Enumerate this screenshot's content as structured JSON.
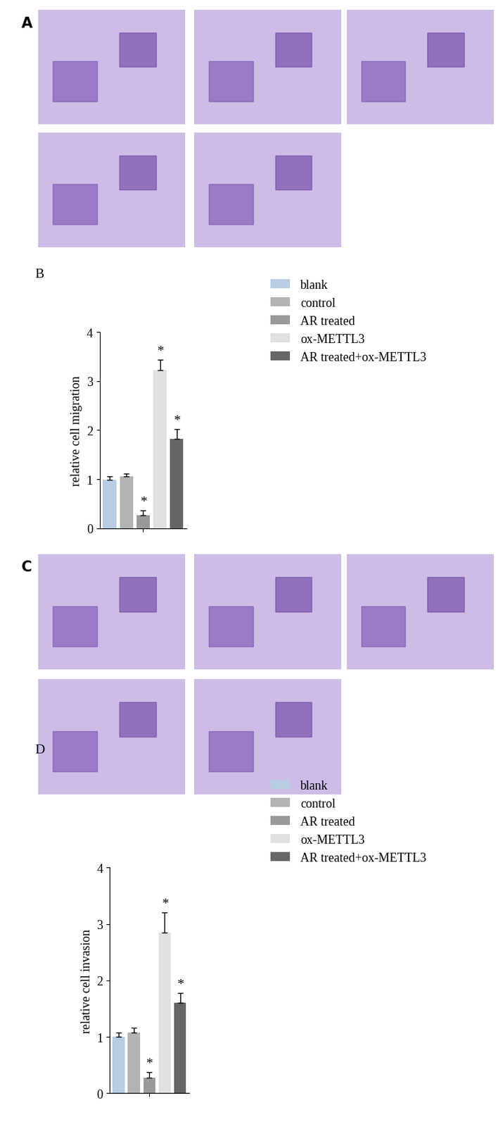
{
  "chart_data": [
    {
      "type": "image",
      "title": "A",
      "count": 5
    },
    {
      "type": "bar",
      "title": "B",
      "categories": [
        "blank",
        "control",
        "AR treated",
        "ox-METTL3",
        "AR treated+ox-METTL3"
      ],
      "values": [
        0.98,
        1.05,
        0.27,
        3.22,
        1.82
      ],
      "errors": [
        0.07,
        0.07,
        0.1,
        0.22,
        0.2
      ],
      "colors": [
        "#b8cce4",
        "#b3b3b3",
        "#999999",
        "#e0e0e0",
        "#666666"
      ],
      "y_label": "relative cell migration",
      "ylim": [
        0,
        4
      ],
      "yticks": [
        0,
        1,
        2,
        3,
        4
      ],
      "annotations": [
        {
          "category": "AR treated",
          "text": "*"
        },
        {
          "category": "ox-METTL3",
          "text": "*"
        },
        {
          "category": "AR treated+ox-METTL3",
          "text": "*"
        }
      ],
      "legend": "upper left",
      "tick_labels": "y"
    },
    {
      "type": "image",
      "title": "C",
      "count": 5
    },
    {
      "type": "bar",
      "title": "D",
      "categories": [
        "blank",
        "control",
        "AR treated",
        "ox-METTL3",
        "AR treated+ox-METTL3"
      ],
      "values": [
        1.0,
        1.08,
        0.27,
        2.85,
        1.6
      ],
      "errors": [
        0.08,
        0.08,
        0.1,
        0.35,
        0.18
      ],
      "colors": [
        "#b8cce4",
        "#b3b3b3",
        "#999999",
        "#e0e0e0",
        "#666666"
      ],
      "y_label": "relative cell invasion",
      "ylim": [
        0,
        4
      ],
      "yticks": [
        0,
        1,
        2,
        3,
        4
      ],
      "annotations": [
        {
          "category": "AR treated",
          "text": "*"
        },
        {
          "category": "ox-METTL3",
          "text": "*"
        },
        {
          "category": "AR treated+ox-METTL3",
          "text": "*"
        }
      ],
      "legend": "upper left",
      "tick_labels": "y"
    }
  ]
}
